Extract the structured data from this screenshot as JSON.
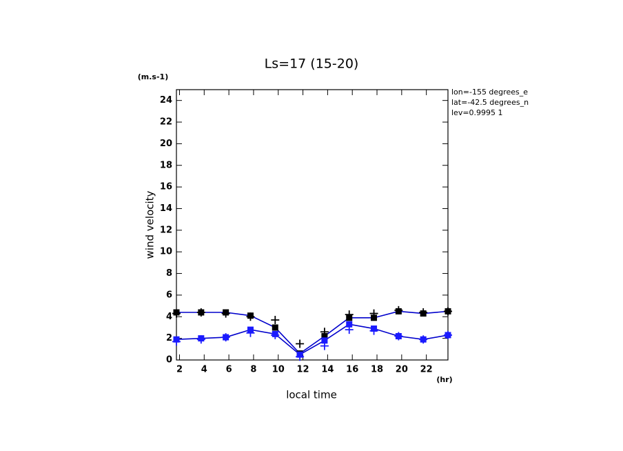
{
  "chart_data": {
    "type": "line",
    "title": "Ls=17 (15-20)",
    "y_unit": "(m.s-1)",
    "x_unit": "(hr)",
    "y_label": "wind velocity",
    "x_label": "local time",
    "annotations": [
      "lon=-155 degrees_e",
      "lat=-42.5 degrees_n",
      "lev=0.9995 1"
    ],
    "x": [
      1.75,
      3.75,
      5.75,
      7.75,
      9.75,
      11.75,
      13.75,
      15.75,
      17.75,
      19.75,
      21.75,
      23.75
    ],
    "series": [
      {
        "color": "#000000",
        "line_color": "#0000cc",
        "marker": "square",
        "line": true,
        "values": [
          4.4,
          4.4,
          4.4,
          4.1,
          3.0,
          0.6,
          2.2,
          3.9,
          3.9,
          4.5,
          4.3,
          4.5
        ]
      },
      {
        "color": "#1a1aff",
        "line_color": "#0000cc",
        "marker": "square",
        "line": true,
        "values": [
          1.9,
          2.0,
          2.1,
          2.8,
          2.4,
          0.5,
          1.8,
          3.3,
          2.9,
          2.2,
          1.9,
          2.3
        ]
      },
      {
        "color": "#000000",
        "marker": "plus",
        "line": false,
        "values": [
          4.3,
          4.4,
          4.3,
          4.0,
          3.7,
          1.5,
          2.6,
          4.2,
          4.3,
          4.6,
          4.4,
          4.5
        ]
      },
      {
        "color": "#1a1aff",
        "marker": "plus",
        "line": false,
        "values": [
          1.7,
          1.9,
          2.1,
          2.5,
          2.3,
          0.3,
          1.3,
          2.8,
          2.7,
          2.2,
          1.9,
          2.3
        ]
      }
    ],
    "xlim": [
      1.75,
      23.75
    ],
    "ylim": [
      0,
      25
    ],
    "xticks": [
      2,
      4,
      6,
      8,
      10,
      12,
      14,
      16,
      18,
      20,
      22
    ],
    "yticks": [
      0,
      2,
      4,
      6,
      8,
      10,
      12,
      14,
      16,
      18,
      20,
      22,
      24
    ]
  }
}
